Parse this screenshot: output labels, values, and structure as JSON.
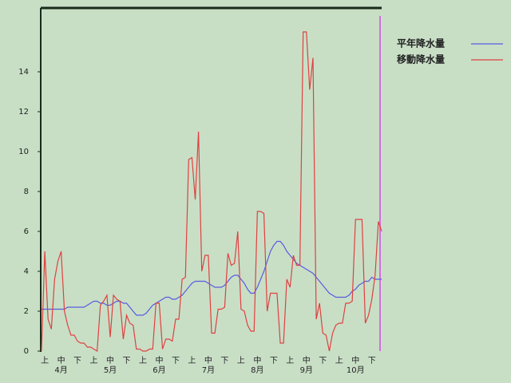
{
  "chart_data": {
    "type": "line",
    "categories": [
      null,
      "上",
      null,
      null,
      null,
      null,
      "中",
      null,
      null,
      null,
      null,
      "下",
      null,
      null,
      null,
      null,
      "上",
      null,
      null,
      null,
      null,
      "中",
      null,
      null,
      null,
      null,
      "下",
      null,
      null,
      null,
      null,
      "上",
      null,
      null,
      null,
      null,
      "中",
      null,
      null,
      null,
      null,
      "下",
      null,
      null,
      null,
      null,
      "上",
      null,
      null,
      null,
      null,
      "中",
      null,
      null,
      null,
      null,
      "下",
      null,
      null,
      null,
      null,
      "上",
      null,
      null,
      null,
      null,
      "中",
      null,
      null,
      null,
      null,
      "下",
      null,
      null,
      null,
      null,
      "上",
      null,
      null,
      null,
      null,
      "中",
      null,
      null,
      null,
      null,
      "下",
      null,
      null,
      null,
      null,
      "上",
      null,
      null,
      null,
      null,
      "中",
      null,
      null,
      null,
      null,
      "下",
      null,
      null,
      null
    ],
    "month_labels": [
      null,
      null,
      null,
      null,
      null,
      null,
      "4月",
      null,
      null,
      null,
      null,
      null,
      null,
      null,
      null,
      null,
      null,
      null,
      null,
      null,
      null,
      "5月",
      null,
      null,
      null,
      null,
      null,
      null,
      null,
      null,
      null,
      null,
      null,
      null,
      null,
      null,
      "6月",
      null,
      null,
      null,
      null,
      null,
      null,
      null,
      null,
      null,
      null,
      null,
      null,
      null,
      null,
      "7月",
      null,
      null,
      null,
      null,
      null,
      null,
      null,
      null,
      null,
      null,
      null,
      null,
      null,
      null,
      "8月",
      null,
      null,
      null,
      null,
      null,
      null,
      null,
      null,
      null,
      null,
      null,
      null,
      null,
      null,
      "9月",
      null,
      null,
      null,
      null,
      null,
      null,
      null,
      null,
      null,
      null,
      null,
      null,
      null,
      null,
      "10月",
      null,
      null,
      null,
      null,
      null,
      null,
      null,
      null
    ],
    "series": [
      {
        "name": "平年降水量",
        "color": "#5a5ae0",
        "values": [
          2.1,
          2.1,
          2.1,
          2.1,
          2.1,
          2.1,
          2.1,
          2.1,
          2.2,
          2.2,
          2.2,
          2.2,
          2.2,
          2.2,
          2.3,
          2.4,
          2.5,
          2.5,
          2.4,
          2.4,
          2.3,
          2.3,
          2.4,
          2.5,
          2.5,
          2.4,
          2.4,
          2.2,
          2.0,
          1.8,
          1.8,
          1.8,
          1.9,
          2.1,
          2.3,
          2.4,
          2.5,
          2.6,
          2.7,
          2.7,
          2.6,
          2.6,
          2.7,
          2.8,
          3.0,
          3.2,
          3.4,
          3.5,
          3.5,
          3.5,
          3.5,
          3.4,
          3.3,
          3.2,
          3.2,
          3.2,
          3.3,
          3.5,
          3.7,
          3.8,
          3.8,
          3.6,
          3.4,
          3.1,
          2.9,
          2.9,
          3.2,
          3.6,
          4.0,
          4.5,
          5.0,
          5.3,
          5.5,
          5.5,
          5.3,
          5.0,
          4.8,
          4.6,
          4.4,
          4.3,
          4.2,
          4.1,
          4.0,
          3.9,
          3.7,
          3.5,
          3.3,
          3.1,
          2.9,
          2.8,
          2.7,
          2.7,
          2.7,
          2.7,
          2.8,
          3.0,
          3.1,
          3.3,
          3.4,
          3.5,
          3.5,
          3.7,
          3.6,
          3.6,
          3.6
        ]
      },
      {
        "name": "移動降水量",
        "color": "#e04040",
        "values": [
          0.0,
          5.0,
          1.6,
          1.1,
          3.6,
          4.5,
          5.0,
          2.0,
          1.3,
          0.8,
          0.8,
          0.5,
          0.4,
          0.4,
          0.2,
          0.2,
          0.1,
          0.0,
          2.3,
          2.5,
          2.8,
          0.7,
          2.8,
          2.6,
          2.5,
          0.6,
          1.8,
          1.4,
          1.3,
          0.1,
          0.1,
          0.0,
          0.0,
          0.1,
          0.1,
          2.4,
          2.4,
          0.1,
          0.6,
          0.6,
          0.5,
          1.6,
          1.6,
          3.6,
          3.7,
          9.6,
          9.7,
          7.6,
          11.0,
          4.0,
          4.8,
          4.8,
          0.9,
          0.9,
          2.1,
          2.1,
          2.2,
          4.9,
          4.3,
          4.4,
          6.0,
          2.1,
          2.0,
          1.3,
          1.0,
          1.0,
          7.0,
          7.0,
          6.9,
          2.0,
          2.9,
          2.9,
          2.9,
          0.4,
          0.4,
          3.6,
          3.2,
          4.8,
          4.3,
          4.3,
          16.0,
          16.0,
          13.1,
          14.7,
          1.6,
          2.4,
          0.9,
          0.8,
          0.0,
          0.9,
          1.3,
          1.4,
          1.4,
          2.4,
          2.4,
          2.5,
          6.6,
          6.6,
          6.6,
          1.4,
          1.8,
          2.6,
          3.8,
          6.5,
          6.0
        ]
      }
    ],
    "ylim": [
      0,
      17.2
    ],
    "yticks": [
      0,
      2,
      4,
      6,
      8,
      10,
      12,
      14
    ],
    "legend": "top-right"
  }
}
